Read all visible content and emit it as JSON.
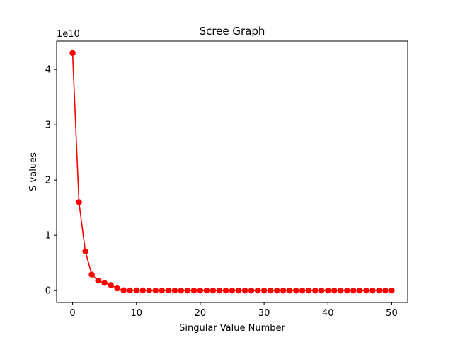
{
  "chart_data": {
    "type": "line",
    "title": "Scree Graph",
    "xlabel": "Singular Value Number",
    "ylabel": "S values",
    "offset_label": "1e10",
    "xlim": [
      -2.5,
      52.5
    ],
    "ylim": [
      -0.215,
      4.515
    ],
    "y_scale_note": "values in units of 1e10",
    "xticks": [
      0,
      10,
      20,
      30,
      40,
      50
    ],
    "xtick_labels": [
      "0",
      "10",
      "20",
      "30",
      "40",
      "50"
    ],
    "yticks": [
      0,
      1,
      2,
      3,
      4
    ],
    "ytick_labels": [
      "0",
      "1",
      "2",
      "3",
      "4"
    ],
    "grid": false,
    "legend": "none",
    "series": [
      {
        "color": "#ff0000",
        "marker": "circle",
        "x": [
          0,
          1,
          2,
          3,
          4,
          5,
          6,
          7,
          8,
          9,
          10,
          11,
          12,
          13,
          14,
          15,
          16,
          17,
          18,
          19,
          20,
          21,
          22,
          23,
          24,
          25,
          26,
          27,
          28,
          29,
          30,
          31,
          32,
          33,
          34,
          35,
          36,
          37,
          38,
          39,
          40,
          41,
          42,
          43,
          44,
          45,
          46,
          47,
          48,
          49,
          50
        ],
        "y": [
          4.3,
          1.6,
          0.71,
          0.29,
          0.18,
          0.14,
          0.1,
          0.04,
          0.005,
          0.004,
          0.003,
          0.003,
          0.002,
          0.002,
          0.002,
          0.002,
          0.002,
          0.001,
          0.001,
          0.001,
          0.001,
          0.001,
          0.001,
          0.001,
          0.001,
          0.001,
          0.001,
          0.001,
          0.001,
          0.001,
          0.001,
          0.001,
          0.001,
          0.001,
          0.001,
          0.001,
          0.001,
          0.001,
          0.001,
          0.001,
          0.001,
          0.001,
          0.001,
          0.001,
          0.001,
          0.001,
          0.001,
          0.001,
          0.001,
          0.001,
          0.001
        ]
      }
    ]
  }
}
